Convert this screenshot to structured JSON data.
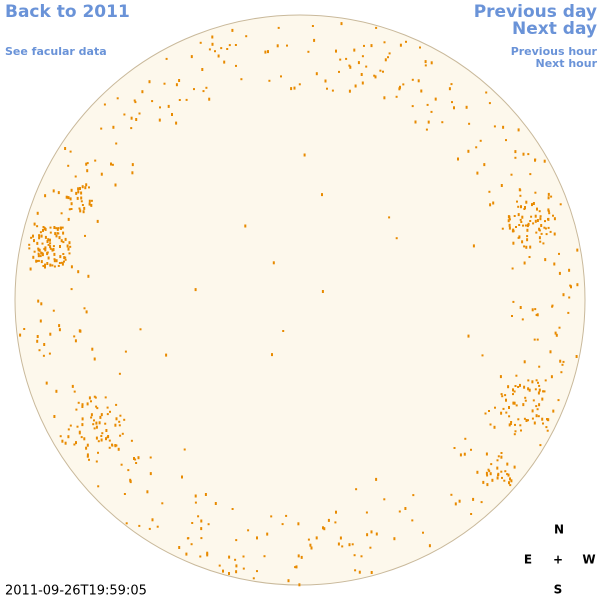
{
  "nav": {
    "back": "Back to 2011",
    "facular_data": "See facular data",
    "previous_day": "Previous day",
    "next_day": "Next day",
    "previous_hour": "Previous hour",
    "next_hour": "Next hour"
  },
  "compass": {
    "north": "N",
    "east": "E",
    "center": "+",
    "west": "W",
    "south": "S"
  },
  "timestamp": "2011-09-26T19:59:05"
}
